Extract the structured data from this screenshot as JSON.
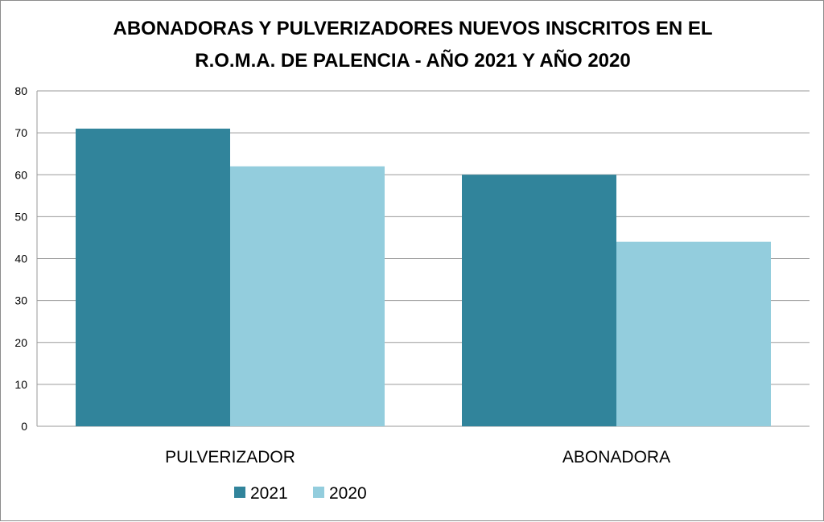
{
  "chart_data": {
    "type": "bar",
    "title_lines": [
      "ABONADORAS Y PULVERIZADORES NUEVOS INSCRITOS EN EL",
      "R.O.M.A. DE PALENCIA - AÑO 2021 Y AÑO 2020"
    ],
    "categories": [
      "PULVERIZADOR",
      "ABONADORA"
    ],
    "series": [
      {
        "name": "2021",
        "values": [
          71,
          60
        ],
        "color": "#31849b"
      },
      {
        "name": "2020",
        "values": [
          62,
          44
        ],
        "color": "#93cddd"
      }
    ],
    "ylim": [
      0,
      80
    ],
    "yticks": [
      "0",
      "10",
      "20",
      "30",
      "40",
      "50",
      "60",
      "70",
      "80"
    ],
    "xlabel": "",
    "ylabel": "",
    "grid": true,
    "legend_position": "bottom"
  }
}
